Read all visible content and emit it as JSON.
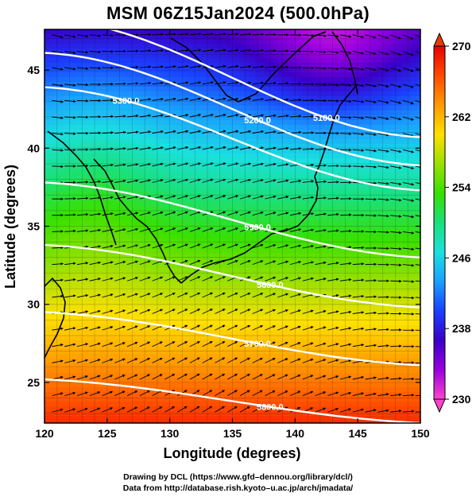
{
  "title": "MSM 06Z15Jan2024 (500.0hPa)",
  "map": {
    "x_axis": {
      "label": "Longitude (degrees)",
      "range": [
        120,
        150
      ],
      "ticks": [
        120,
        125,
        130,
        135,
        140,
        145,
        150
      ]
    },
    "y_axis": {
      "label": "Latitude  (degrees)",
      "range": [
        22.4,
        47.6
      ],
      "ticks": [
        25,
        30,
        35,
        40,
        45
      ]
    },
    "colorbar": {
      "min": 230,
      "max": 270,
      "ticks": [
        230,
        238,
        246,
        254,
        262,
        270
      ],
      "colors": [
        "#ff44cc",
        "#9a00e0",
        "#3a00c8",
        "#1a40ff",
        "#1aa0ff",
        "#1ae0e0",
        "#1ae07a",
        "#38e000",
        "#9ae000",
        "#ffe000",
        "#ff9a00",
        "#ff4a00",
        "#e80000"
      ]
    },
    "contours": [
      {
        "label": "5100.0",
        "value": 5100
      },
      {
        "label": "5200.0",
        "value": 5200
      },
      {
        "label": "5300.0",
        "value": 5300
      },
      {
        "label": "5500.0",
        "value": 5500
      },
      {
        "label": "5600.0",
        "value": 5600
      },
      {
        "label": "5700.0",
        "value": 5700
      },
      {
        "label": "5800.0",
        "value": 5800
      }
    ]
  },
  "credits": {
    "line1": "Drawing by DCL (https://www.gfd–dennou.org/library/dcl/)",
    "line2": "Data from http://database.rish.kyoto–u.ac.jp/arch/jmadata/"
  }
}
